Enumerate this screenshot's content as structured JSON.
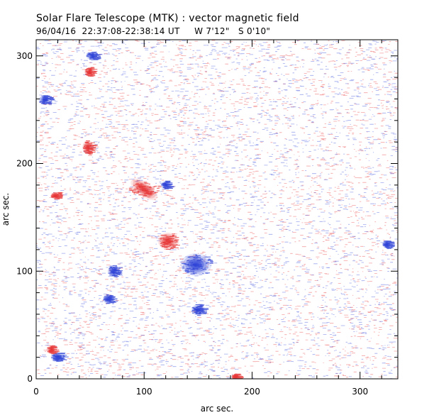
{
  "title": "Solar Flare Telescope (MTK) : vector magnetic field",
  "subtitle": "96/04/16  22:37:08-22:38:14 UT     W 7'12\"   S 0'10\"",
  "chart_data": {
    "type": "heatmap",
    "title": "Solar Flare Telescope (MTK) : vector magnetic field",
    "xlabel": "arc sec.",
    "ylabel": "arc sec.",
    "xlim": [
      0,
      335
    ],
    "ylim": [
      0,
      315
    ],
    "xticks": [
      0,
      100,
      200,
      300
    ],
    "yticks": [
      0,
      100,
      200,
      300
    ],
    "colors": {
      "positive": "#e63030",
      "negative": "#2a3fd6"
    },
    "regions": [
      {
        "polarity": "positive",
        "x": 122,
        "y": 128
      },
      {
        "polarity": "positive",
        "x": 100,
        "y": 176
      },
      {
        "polarity": "negative",
        "x": 148,
        "y": 106
      },
      {
        "polarity": "negative",
        "x": 150,
        "y": 64
      },
      {
        "polarity": "negative",
        "x": 72,
        "y": 100
      },
      {
        "polarity": "negative",
        "x": 67,
        "y": 74
      },
      {
        "polarity": "negative",
        "x": 120,
        "y": 180
      },
      {
        "polarity": "negative",
        "x": 52,
        "y": 300
      },
      {
        "polarity": "negative",
        "x": 8,
        "y": 259
      },
      {
        "polarity": "negative",
        "x": 325,
        "y": 125
      },
      {
        "polarity": "negative",
        "x": 20,
        "y": 20
      },
      {
        "polarity": "positive",
        "x": 48,
        "y": 215
      },
      {
        "polarity": "positive",
        "x": 50,
        "y": 285
      },
      {
        "polarity": "positive",
        "x": 18,
        "y": 170
      },
      {
        "polarity": "positive",
        "x": 14,
        "y": 27
      },
      {
        "polarity": "positive",
        "x": 185,
        "y": 2
      }
    ]
  }
}
